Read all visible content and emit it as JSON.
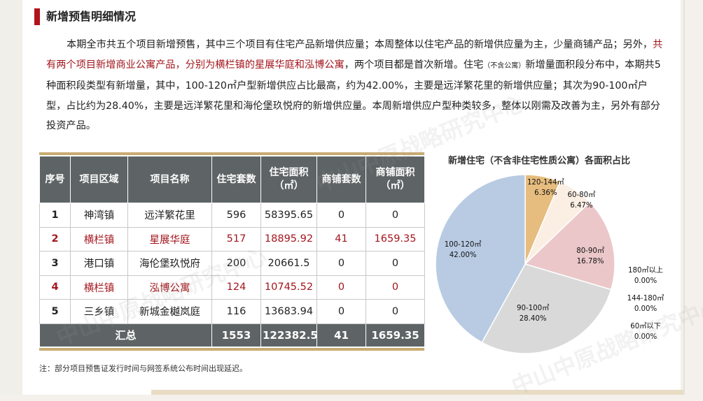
{
  "title": "新增预售明细情况",
  "paragraph": {
    "p1": "本期全市共五个项目新增预售，其中三个项目有住宅产品新增供应量；本周整体以住宅产品的新增供应量为主，少量商铺产品；另外，",
    "p1_red": "共有两个项目新增商业公寓产品，分别为横栏镇的星展华庭和泓博公寓",
    "p2": "，两个项目都是首次新增。住宅",
    "p2_small": "（不含公寓）",
    "p3": "新增量面积段分布中，本期共5种面积段类型有新增量，其中，100-120㎡户型新增供应占比最高，约为42.00%，主要是远洋繁花里的新增供应量；其次为90-100㎡户型，占比约为28.40%，主要是远洋繁花里和海伦堡玖悦府的新增供应量。本周新增供应户型种类较多，整体以刚需及改善为主，另外有部分投资产品。"
  },
  "table": {
    "headers": [
      "序号",
      "项目区域",
      "项目名称",
      "住宅套数",
      "住宅面积（㎡）",
      "商铺套数",
      "商铺面积（㎡）"
    ],
    "rows": [
      {
        "no": "1",
        "area": "神湾镇",
        "name": "远洋繁花里",
        "units": "596",
        "res_area": "58395.65",
        "shop_units": "0",
        "shop_area": "0",
        "highlight": false
      },
      {
        "no": "2",
        "area": "横栏镇",
        "name": "星展华庭",
        "units": "517",
        "res_area": "18895.92",
        "shop_units": "41",
        "shop_area": "1659.35",
        "highlight": true
      },
      {
        "no": "3",
        "area": "港口镇",
        "name": "海伦堡玖悦府",
        "units": "200",
        "res_area": "20661.5",
        "shop_units": "0",
        "shop_area": "0",
        "highlight": false
      },
      {
        "no": "4",
        "area": "横栏镇",
        "name": "泓博公寓",
        "units": "124",
        "res_area": "10745.52",
        "shop_units": "0",
        "shop_area": "0",
        "highlight": true
      },
      {
        "no": "5",
        "area": "三乡镇",
        "name": "新城金樾岚庭",
        "units": "116",
        "res_area": "13683.94",
        "shop_units": "0",
        "shop_area": "0",
        "highlight": false
      }
    ],
    "total": {
      "label": "汇总",
      "units": "1553",
      "res_area": "122382.5",
      "shop_units": "41",
      "shop_area": "1659.35"
    }
  },
  "note": "注：部分项目预售证发行时间与网签系统公布时间出现延迟。",
  "watermark_text": "中山中原战略研究中心",
  "chart_data": {
    "type": "pie",
    "title": "新增住宅（不含非住宅性质公寓）各面积占比",
    "slices": [
      {
        "label": "100-120㎡",
        "value": 42.0,
        "display": "42.00%",
        "color": "#b8cbe3"
      },
      {
        "label": "120-144㎡",
        "value": 6.36,
        "display": "6.36%",
        "color": "#e6bd7e"
      },
      {
        "label": "60-80㎡",
        "value": 6.47,
        "display": "6.47%",
        "color": "#fbeee3"
      },
      {
        "label": "80-90㎡",
        "value": 16.78,
        "display": "16.78%",
        "color": "#ebc7c9"
      },
      {
        "label": "90-100㎡",
        "value": 28.4,
        "display": "28.40%",
        "color": "#d9d9d9"
      },
      {
        "label": "180㎡以上",
        "value": 0,
        "display": "0.00%",
        "color": "#cccccc"
      },
      {
        "label": "144-180㎡",
        "value": 0,
        "display": "0.00%",
        "color": "#cccccc"
      },
      {
        "label": "60㎡以下",
        "value": 0,
        "display": "0.00%",
        "color": "#cccccc"
      }
    ]
  }
}
